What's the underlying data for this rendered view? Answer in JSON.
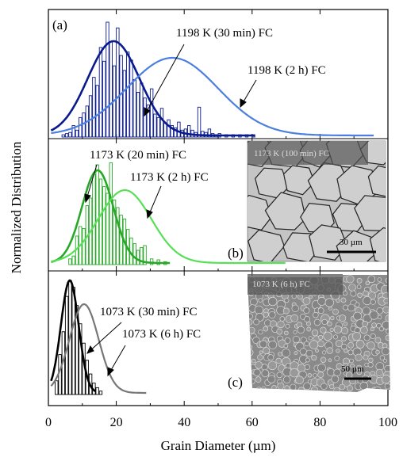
{
  "figure": {
    "xlabel": "Grain Diameter (µm)",
    "ylabel": "Normalized Distribution",
    "xticks": [
      "0",
      "20",
      "40",
      "60",
      "80",
      "100"
    ]
  },
  "chart_data": {
    "type": "histogram-with-fitted-curves",
    "xlim": [
      0,
      100
    ],
    "xlabel": "Grain Diameter (µm)",
    "ylabel": "Normalized Distribution",
    "panels": [
      {
        "panel_label": "(a)",
        "temperature": "1198 K",
        "series": [
          {
            "name": "1198 K (30 min) FC",
            "peak_x": 19.2,
            "sigma": 7.6,
            "x_end": 61,
            "color": "#0a1a8c",
            "hist_x": [
              4,
              5,
              6,
              7,
              8,
              9,
              10,
              11,
              12,
              13,
              14,
              15,
              16,
              17,
              18,
              19,
              20,
              21,
              22,
              23,
              24,
              25,
              26,
              27,
              28,
              29,
              30,
              31,
              32,
              33,
              34,
              35,
              36,
              37,
              38,
              39,
              40,
              41,
              42,
              43,
              44,
              45,
              46,
              47,
              48,
              49,
              50,
              52,
              54,
              56,
              58,
              60
            ],
            "hist_y": [
              0.02,
              0.03,
              0.04,
              0.1,
              0.06,
              0.17,
              0.21,
              0.27,
              0.36,
              0.52,
              0.45,
              0.78,
              0.66,
              1.0,
              0.83,
              0.62,
              0.95,
              0.71,
              0.58,
              0.74,
              0.67,
              0.5,
              0.39,
              0.47,
              0.34,
              0.28,
              0.42,
              0.2,
              0.17,
              0.25,
              0.12,
              0.15,
              0.1,
              0.08,
              0.13,
              0.06,
              0.07,
              0.1,
              0.06,
              0.04,
              0.26,
              0.05,
              0.04,
              0.07,
              0.03,
              0.02,
              0.03,
              0.02,
              0.02,
              0.02,
              0.02,
              0.02
            ]
          },
          {
            "name": "1198 K (2 h) FC",
            "peak_x": 36.5,
            "sigma": 13.5,
            "x_end": 96,
            "color": "#4b7fe0"
          }
        ]
      },
      {
        "panel_label": "(b)",
        "temperature": "1173 K",
        "series": [
          {
            "name": "1173 K (20 min) FC",
            "peak_x": 14.5,
            "sigma": 4.6,
            "x_end": 36,
            "color": "#27a827",
            "hist_x": [
              6,
              7,
              8,
              9,
              10,
              11,
              12,
              13,
              14,
              15,
              16,
              17,
              18,
              19,
              20,
              21,
              22,
              23,
              24,
              25,
              26,
              27,
              28,
              30,
              32,
              34
            ],
            "hist_y": [
              0.06,
              0.09,
              0.3,
              0.4,
              0.38,
              0.62,
              0.7,
              0.95,
              1.05,
              0.9,
              0.82,
              0.75,
              1.07,
              0.68,
              0.6,
              0.52,
              0.48,
              0.37,
              0.28,
              0.22,
              0.15,
              0.18,
              0.2,
              0.06,
              0.05,
              0.03
            ]
          },
          {
            "name": "1173 K (2 h) FC",
            "peak_x": 22.5,
            "sigma": 7.8,
            "x_end": 70,
            "color": "#55e055"
          }
        ],
        "inset": {
          "label": "1173 K (100 min) FC",
          "scale_bar": "30 µm"
        }
      },
      {
        "panel_label": "(c)",
        "temperature": "1073 K",
        "series": [
          {
            "name": "1073 K (30 min) FC",
            "peak_x": 6.3,
            "sigma": 2.6,
            "x_end": 14,
            "color": "#000000",
            "hist_x": [
              2,
              3,
              4,
              5,
              6,
              7,
              8,
              9,
              10,
              11,
              12,
              13,
              14,
              15
            ],
            "hist_y": [
              0.12,
              0.35,
              0.55,
              0.86,
              1.0,
              0.94,
              0.78,
              0.62,
              0.45,
              0.3,
              0.18,
              0.1,
              0.06,
              0.03
            ]
          },
          {
            "name": "1073 K (6 h) FC",
            "peak_x": 10.5,
            "sigma": 4.3,
            "x_end": 29,
            "color": "#777777"
          }
        ],
        "inset": {
          "label": "1073 K (6 h) FC",
          "scale_bar": "50 µm"
        }
      }
    ]
  }
}
